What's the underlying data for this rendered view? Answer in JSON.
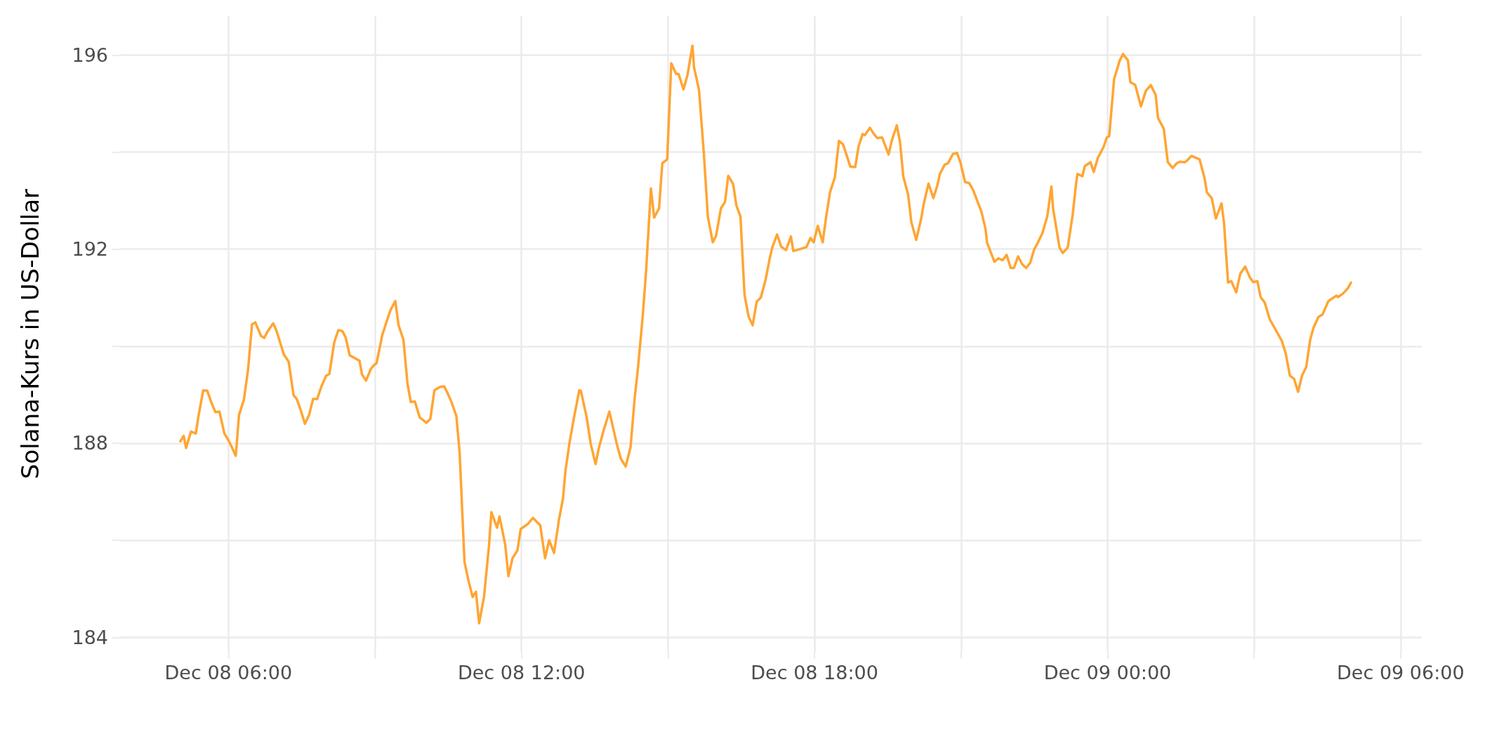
{
  "chart_data": {
    "type": "line",
    "ylabel": "Solana-Kurs in US-Dollar",
    "x": [
      "--12-08T05:01",
      "--12-08T05:05",
      "--12-08T05:08",
      "--12-08T05:14",
      "--12-08T05:20",
      "--12-08T05:23",
      "--12-08T05:29",
      "--12-08T05:34",
      "--12-08T05:39",
      "--12-08T05:44",
      "--12-08T05:49",
      "--12-08T05:55",
      "--12-08T05:59",
      "--12-08T06:03",
      "--12-08T06:09",
      "--12-08T06:13",
      "--12-08T06:19",
      "--12-08T06:24",
      "--12-08T06:29",
      "--12-08T06:33",
      "--12-08T06:40",
      "--12-08T06:44",
      "--12-08T06:48",
      "--12-08T06:55",
      "--12-08T06:59",
      "--12-08T07:08",
      "--12-08T07:14",
      "--12-08T07:20",
      "--12-08T07:24",
      "--12-08T07:29",
      "--12-08T07:34",
      "--12-08T07:39",
      "--12-08T07:44",
      "--12-08T07:49",
      "--12-08T07:54",
      "--12-08T08:00",
      "--12-08T08:04",
      "--12-08T08:10",
      "--12-08T08:15",
      "--12-08T08:20",
      "--12-08T08:24",
      "--12-08T08:29",
      "--12-08T08:41",
      "--12-08T08:44",
      "--12-08T08:49",
      "--12-08T08:55",
      "--12-08T08:59",
      "--12-08T09:02",
      "--12-08T09:09",
      "--12-08T09:14",
      "--12-08T09:19",
      "--12-08T09:25",
      "--12-08T09:29",
      "--12-08T09:35",
      "--12-08T09:40",
      "--12-08T09:44",
      "--12-08T09:49",
      "--12-08T09:55",
      "--12-08T09:59",
      "--12-08T10:03",
      "--12-08T10:08",
      "--12-08T10:13",
      "--12-08T10:20",
      "--12-08T10:25",
      "--12-08T10:29",
      "--12-08T10:34",
      "--12-08T10:40",
      "--12-08T10:44",
      "--12-08T10:50",
      "--12-08T10:55",
      "--12-08T11:00",
      "--12-08T11:04",
      "--12-08T11:08",
      "--12-08T11:14",
      "--12-08T11:20",
      "--12-08T11:23",
      "--12-08T11:30",
      "--12-08T11:33",
      "--12-08T11:40",
      "--12-08T11:44",
      "--12-08T11:49",
      "--12-08T11:55",
      "--12-08T11:59",
      "--12-08T12:08",
      "--12-08T12:14",
      "--12-08T12:23",
      "--12-08T12:29",
      "--12-08T12:34",
      "--12-08T12:40",
      "--12-08T12:46",
      "--12-08T12:51",
      "--12-08T12:54",
      "--12-08T12:59",
      "--12-08T13:05",
      "--12-08T13:11",
      "--12-08T13:13",
      "--12-08T13:20",
      "--12-08T13:25",
      "--12-08T13:31",
      "--12-08T13:35",
      "--12-08T13:41",
      "--12-08T13:48",
      "--12-08T13:57",
      "--12-08T14:02",
      "--12-08T14:08",
      "--12-08T14:14",
      "--12-08T14:19",
      "--12-08T14:23",
      "--12-08T14:29",
      "--12-08T14:33",
      "--12-08T14:39",
      "--12-08T14:43",
      "--12-08T14:49",
      "--12-08T14:53",
      "--12-08T14:59",
      "--12-08T15:04",
      "--12-08T15:10",
      "--12-08T15:13",
      "--12-08T15:19",
      "--12-08T15:24",
      "--12-08T15:30",
      "--12-08T15:32",
      "--12-08T15:38",
      "--12-08T15:44",
      "--12-08T15:49",
      "--12-08T15:55",
      "--12-08T15:59",
      "--12-08T16:05",
      "--12-08T16:10",
      "--12-08T16:14",
      "--12-08T16:20",
      "--12-08T16:24",
      "--12-08T16:29",
      "--12-08T16:34",
      "--12-08T16:39",
      "--12-08T16:44",
      "--12-08T16:49",
      "--12-08T16:54",
      "--12-08T17:00",
      "--12-08T17:05",
      "--12-08T17:08",
      "--12-08T17:14",
      "--12-08T17:19",
      "--12-08T17:25",
      "--12-08T17:31",
      "--12-08T17:34",
      "--12-08T17:42",
      "--12-08T17:50",
      "--12-08T17:55",
      "--12-08T17:59",
      "--12-08T18:04",
      "--12-08T18:10",
      "--12-08T18:14",
      "--12-08T18:19",
      "--12-08T18:25",
      "--12-08T18:30",
      "--12-08T18:35",
      "--12-08T18:44",
      "--12-08T18:50",
      "--12-08T18:54",
      "--12-08T18:59",
      "--12-08T19:02",
      "--12-08T19:08",
      "--12-08T19:13",
      "--12-08T19:17",
      "--12-08T19:23",
      "--12-08T19:31",
      "--12-08T19:35",
      "--12-08T19:41",
      "--12-08T19:45",
      "--12-08T19:49",
      "--12-08T19:55",
      "--12-08T19:59",
      "--12-08T20:05",
      "--12-08T20:11",
      "--12-08T20:14",
      "--12-08T20:20",
      "--12-08T20:26",
      "--12-08T20:31",
      "--12-08T20:34",
      "--12-08T20:40",
      "--12-08T20:44",
      "--12-08T20:50",
      "--12-08T20:55",
      "--12-08T20:59",
      "--12-08T21:05",
      "--12-08T21:10",
      "--12-08T21:15",
      "--12-08T21:25",
      "--12-08T21:30",
      "--12-08T21:32",
      "--12-08T21:41",
      "--12-08T21:46",
      "--12-08T21:51",
      "--12-08T21:56",
      "--12-08T22:01",
      "--12-08T22:05",
      "--12-08T22:10",
      "--12-08T22:15",
      "--12-08T22:20",
      "--12-08T22:25",
      "--12-08T22:30",
      "--12-08T22:34",
      "--12-08T22:40",
      "--12-08T22:46",
      "--12-08T22:51",
      "--12-08T22:53",
      "--12-08T23:01",
      "--12-08T23:05",
      "--12-08T23:11",
      "--12-08T23:17",
      "--12-08T23:21",
      "--12-08T23:23",
      "--12-08T23:29",
      "--12-08T23:32",
      "--12-08T23:39",
      "--12-08T23:43",
      "--12-08T23:48",
      "--12-08T23:55",
      "--12-08T23:59",
      "--12-09T00:02",
      "--12-09T00:08",
      "--12-09T00:15",
      "--12-09T00:19",
      "--12-09T00:25",
      "--12-09T00:28",
      "--12-09T00:34",
      "--12-09T00:41",
      "--12-09T00:47",
      "--12-09T00:53",
      "--12-09T00:59",
      "--12-09T01:02",
      "--12-09T01:09",
      "--12-09T01:14",
      "--12-09T01:20",
      "--12-09T01:25",
      "--12-09T01:29",
      "--12-09T01:35",
      "--12-09T01:38",
      "--12-09T01:43",
      "--12-09T01:53",
      "--12-09T01:59",
      "--12-09T02:02",
      "--12-09T02:08",
      "--12-09T02:13",
      "--12-09T02:20",
      "--12-09T02:23",
      "--12-09T02:28",
      "--12-09T02:32",
      "--12-09T02:38",
      "--12-09T02:43",
      "--12-09T02:49",
      "--12-09T02:55",
      "--12-09T02:59",
      "--12-09T03:04",
      "--12-09T03:08",
      "--12-09T03:13",
      "--12-09T03:19",
      "--12-09T03:25",
      "--12-09T03:34",
      "--12-09T03:39",
      "--12-09T03:44",
      "--12-09T03:49",
      "--12-09T03:54",
      "--12-09T03:59",
      "--12-09T04:04",
      "--12-09T04:09",
      "--12-09T04:13",
      "--12-09T04:19",
      "--12-09T04:24",
      "--12-09T04:31",
      "--12-09T04:34",
      "--12-09T04:41",
      "--12-09T04:43",
      "--12-09T04:49",
      "--12-09T04:55",
      "--12-09T04:59"
    ],
    "series": [
      {
        "color": "#ffa533",
        "values": [
          188.04,
          188.15,
          187.9,
          188.24,
          188.2,
          188.54,
          189.09,
          189.08,
          188.84,
          188.64,
          188.65,
          188.2,
          188.09,
          187.96,
          187.74,
          188.58,
          188.9,
          189.5,
          190.45,
          190.49,
          190.21,
          190.17,
          190.3,
          190.47,
          190.32,
          189.83,
          189.68,
          188.99,
          188.91,
          188.67,
          188.4,
          188.58,
          188.91,
          188.91,
          189.16,
          189.39,
          189.43,
          190.08,
          190.33,
          190.31,
          190.18,
          189.81,
          189.7,
          189.42,
          189.29,
          189.53,
          189.61,
          189.65,
          190.23,
          190.49,
          190.74,
          190.93,
          190.43,
          190.13,
          189.22,
          188.85,
          188.86,
          188.53,
          188.48,
          188.42,
          188.5,
          189.09,
          189.16,
          189.17,
          189.04,
          188.85,
          188.56,
          187.81,
          185.55,
          185.16,
          184.83,
          184.94,
          184.29,
          184.84,
          185.87,
          186.58,
          186.26,
          186.49,
          185.91,
          185.26,
          185.63,
          185.79,
          186.23,
          186.34,
          186.46,
          186.31,
          185.63,
          186.0,
          185.74,
          186.42,
          186.86,
          187.43,
          188.01,
          188.57,
          189.09,
          189.08,
          188.54,
          187.99,
          187.57,
          187.9,
          188.27,
          188.65,
          187.99,
          187.68,
          187.52,
          187.92,
          188.92,
          189.53,
          190.63,
          191.53,
          193.25,
          192.65,
          192.84,
          193.77,
          193.85,
          195.83,
          195.61,
          195.61,
          195.29,
          195.59,
          196.19,
          195.74,
          195.29,
          193.98,
          192.66,
          192.14,
          192.27,
          192.84,
          192.97,
          193.51,
          193.34,
          192.9,
          192.67,
          191.06,
          190.61,
          190.43,
          190.92,
          191.0,
          191.38,
          191.81,
          192.03,
          192.3,
          192.05,
          191.98,
          192.26,
          191.96,
          192.0,
          192.04,
          192.23,
          192.14,
          192.48,
          192.14,
          192.63,
          193.17,
          193.48,
          194.23,
          194.16,
          193.7,
          193.69,
          194.11,
          194.37,
          194.35,
          194.5,
          194.37,
          194.29,
          194.3,
          193.95,
          194.24,
          194.55,
          194.21,
          193.5,
          193.12,
          192.55,
          192.19,
          192.63,
          192.92,
          193.35,
          193.05,
          193.32,
          193.55,
          193.74,
          193.77,
          193.96,
          193.98,
          193.8,
          193.38,
          193.36,
          193.21,
          192.77,
          192.42,
          192.13,
          191.74,
          191.81,
          191.77,
          191.88,
          191.61,
          191.61,
          191.85,
          191.69,
          191.61,
          191.72,
          192.0,
          192.12,
          192.33,
          192.68,
          193.29,
          192.84,
          192.03,
          191.92,
          192.03,
          192.69,
          193.3,
          193.55,
          193.5,
          193.71,
          193.79,
          193.59,
          193.88,
          194.1,
          194.3,
          194.33,
          195.5,
          195.89,
          196.02,
          195.89,
          195.44,
          195.38,
          194.94,
          195.26,
          195.38,
          195.18,
          194.7,
          194.48,
          193.79,
          193.67,
          193.77,
          193.8,
          193.79,
          193.83,
          193.92,
          193.85,
          193.47,
          193.17,
          193.05,
          192.63,
          192.94,
          192.55,
          191.31,
          191.34,
          191.11,
          191.49,
          191.64,
          191.41,
          191.32,
          191.34,
          191.01,
          190.9,
          190.56,
          190.38,
          190.11,
          189.84,
          189.39,
          189.33,
          189.06,
          189.4,
          189.57,
          190.14,
          190.38,
          190.6,
          190.65,
          190.92,
          190.96,
          191.04,
          191.01,
          191.08,
          191.19,
          191.31
        ]
      }
    ],
    "xlim": [
      "--12-08T03:46",
      "--12-09T06:26"
    ],
    "xticks": [
      {
        "value": "--12-08T06:00",
        "label": "Dec 08 06:00"
      },
      {
        "value": "--12-08T09:00",
        "label": null
      },
      {
        "value": "--12-08T12:00",
        "label": "Dec 08 12:00"
      },
      {
        "value": "--12-08T15:00",
        "label": null
      },
      {
        "value": "--12-08T18:00",
        "label": "Dec 08 18:00"
      },
      {
        "value": "--12-08T21:00",
        "label": null
      },
      {
        "value": "--12-09T00:00",
        "label": "Dec 09 00:00"
      },
      {
        "value": "--12-09T03:00",
        "label": null
      },
      {
        "value": "--12-09T06:00",
        "label": "Dec 09 06:00"
      }
    ],
    "ylim": [
      183.7,
      196.8
    ],
    "yticks": [
      184,
      {
        "value": 186,
        "label": null
      },
      188,
      {
        "value": 190,
        "label": null
      },
      192,
      {
        "value": 194,
        "label": null
      },
      196
    ],
    "grid": true,
    "marker": "none",
    "line_style": "solid"
  }
}
